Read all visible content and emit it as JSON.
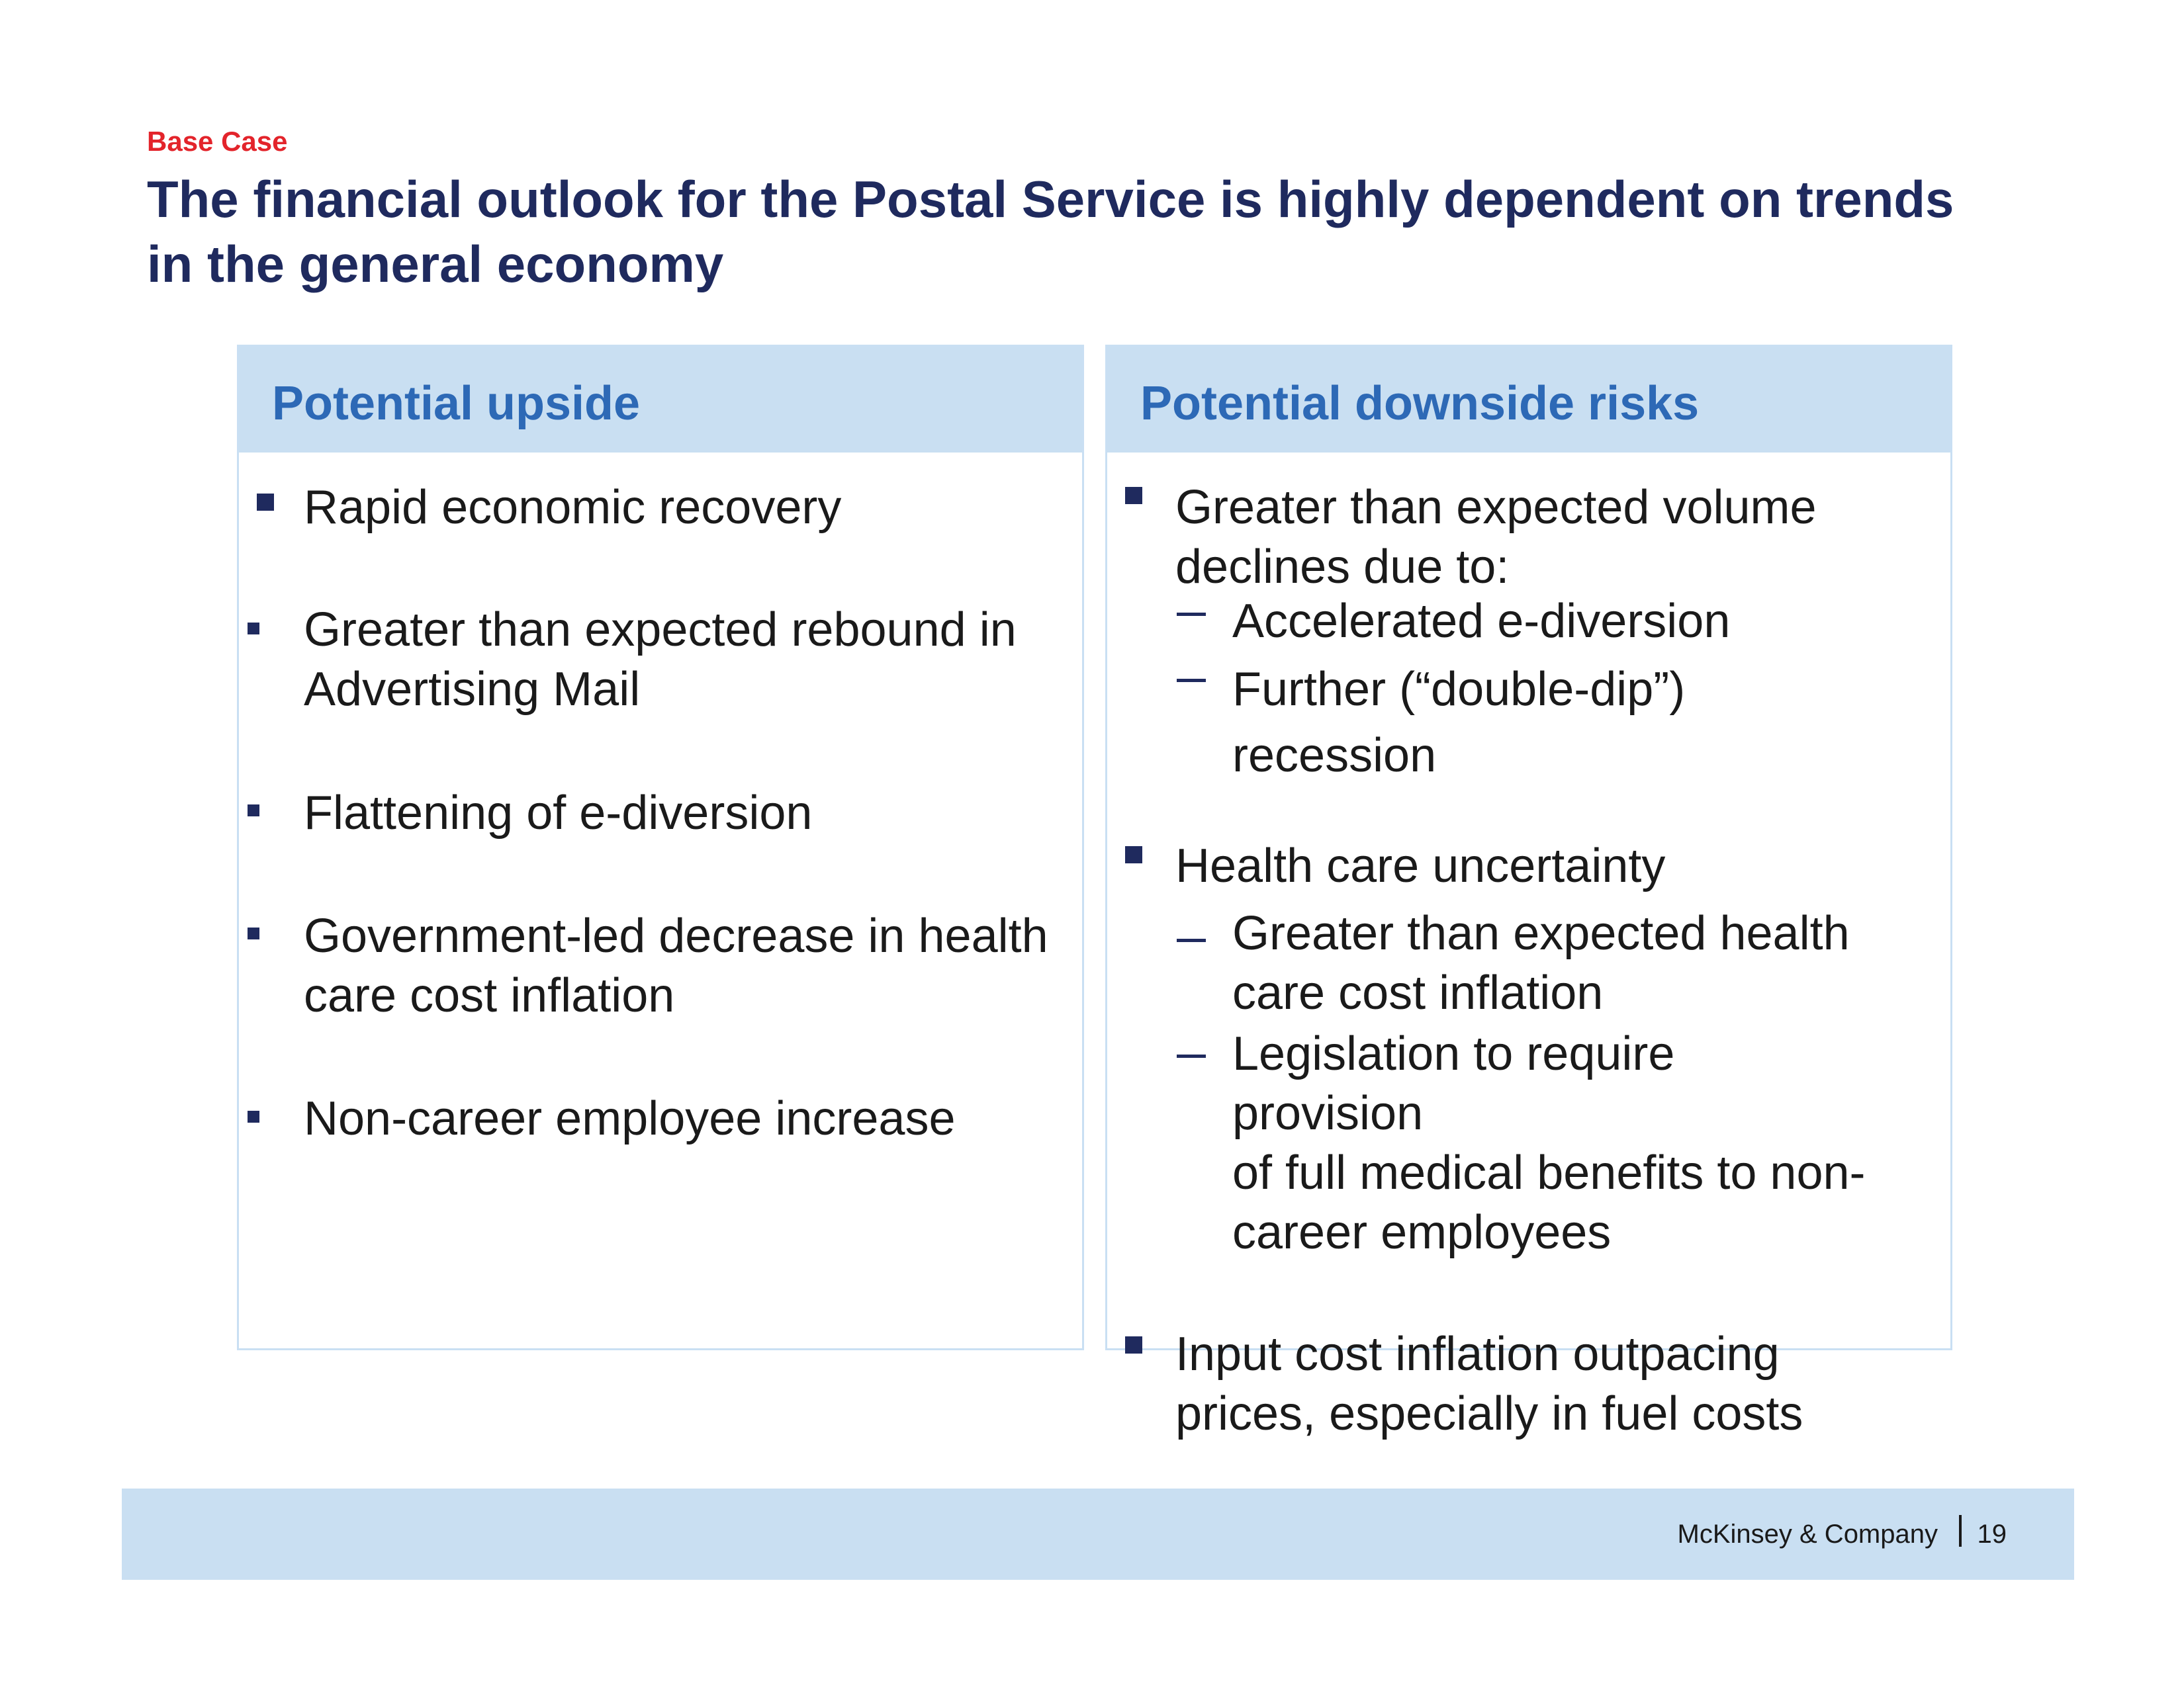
{
  "tag": "Base Case",
  "title_lines": [
    "The financial outlook for the Postal Service is highly dependent on trends",
    "in the general economy"
  ],
  "upside": {
    "header": "Potential upside",
    "items": [
      [
        "Rapid economic recovery"
      ],
      [
        "Greater than expected rebound in",
        "Advertising Mail"
      ],
      [
        "Flattening of e-diversion"
      ],
      [
        "Government-led decrease in health",
        "care cost inflation"
      ],
      [
        "Non-career employee increase"
      ]
    ]
  },
  "downside": {
    "header": "Potential downside risks",
    "items": [
      {
        "lines": [
          "Greater than expected volume",
          "declines due to:"
        ],
        "subs": [
          [
            "Accelerated e-diversion"
          ],
          [
            "Further (“double-dip”)",
            "recession"
          ]
        ]
      },
      {
        "lines": [
          "Health care uncertainty"
        ],
        "subs": [
          [
            "Greater than expected health",
            "care cost inflation"
          ],
          [
            "Legislation to require",
            "provision",
            "of full medical benefits to non-",
            "career employees"
          ]
        ]
      },
      {
        "lines": [
          "Input cost inflation outpacing",
          "prices, especially in fuel costs"
        ],
        "subs": []
      }
    ]
  },
  "footer": {
    "company": "McKinsey & Company",
    "page": "19"
  }
}
